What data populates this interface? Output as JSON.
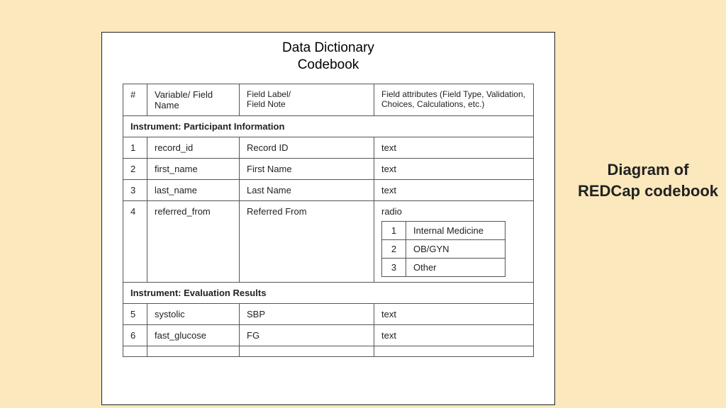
{
  "colors": {
    "page_bg": "#fce8bd",
    "box_bg": "#ffffff",
    "border": "#555555",
    "text": "#222222"
  },
  "caption": "Diagram of REDCap codebook",
  "doc": {
    "title_line1": "Data Dictionary",
    "title_line2": "Codebook",
    "header": {
      "num": "#",
      "variable": "Variable/ Field Name",
      "label": "Field Label/\nField Note",
      "attrs": "Field attributes (Field Type, Validation, Choices, Calculations, etc.)"
    },
    "sections": [
      {
        "instrument_label": "Instrument: Participant Information",
        "rows": [
          {
            "num": "1",
            "variable": "record_id",
            "label": "Record ID",
            "type": "text"
          },
          {
            "num": "2",
            "variable": "first_name",
            "label": "First Name",
            "type": "text"
          },
          {
            "num": "3",
            "variable": "last_name",
            "label": "Last Name",
            "type": "text"
          },
          {
            "num": "4",
            "variable": "referred_from",
            "label": "Referred From",
            "type": "radio",
            "choices": [
              {
                "code": "1",
                "label": "Internal Medicine"
              },
              {
                "code": "2",
                "label": "OB/GYN"
              },
              {
                "code": "3",
                "label": "Other"
              }
            ]
          }
        ]
      },
      {
        "instrument_label": "Instrument: Evaluation Results",
        "rows": [
          {
            "num": "5",
            "variable": "systolic",
            "label": "SBP",
            "type": "text"
          },
          {
            "num": "6",
            "variable": "fast_glucose",
            "label": "FG",
            "type": "text"
          },
          {
            "num": "",
            "variable": "",
            "label": "",
            "type": ""
          }
        ]
      }
    ]
  }
}
